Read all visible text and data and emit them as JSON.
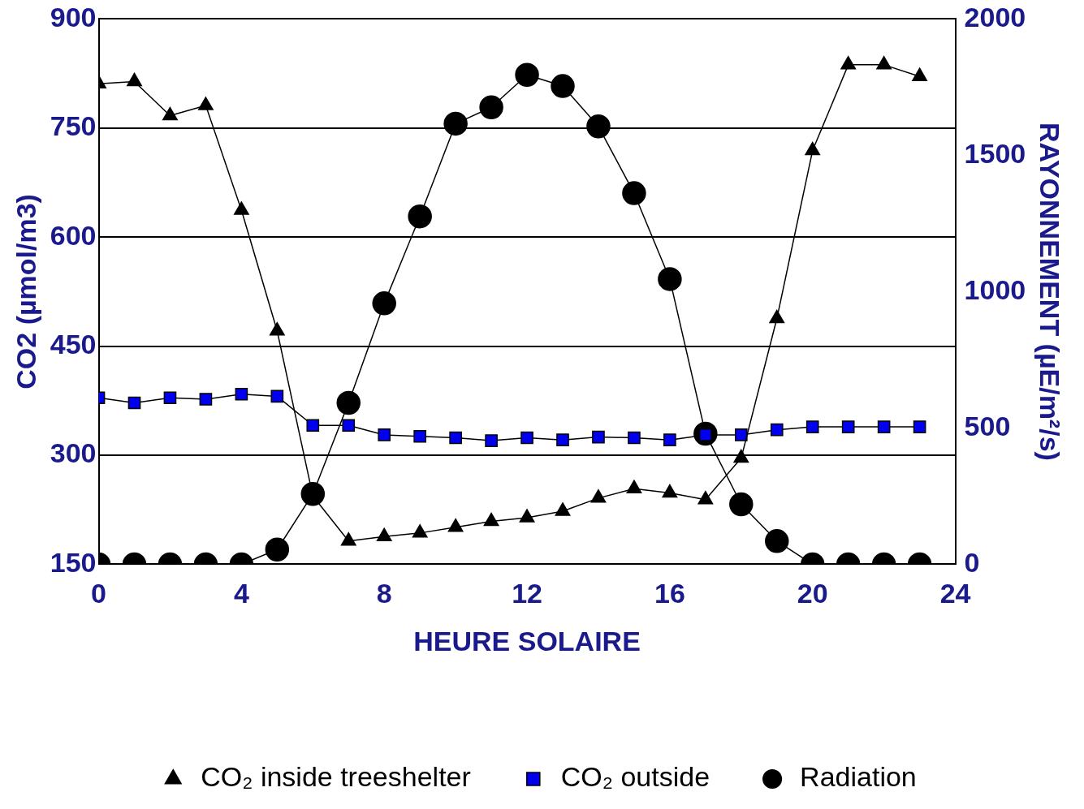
{
  "chart_data": {
    "type": "line",
    "xlabel": "HEURE SOLAIRE",
    "ylabel": "CO2 (µmol/m3)",
    "y2label": "RAYONNEMENT (µE/m²/s)",
    "x": [
      0,
      1,
      2,
      3,
      4,
      5,
      6,
      7,
      8,
      9,
      10,
      11,
      12,
      13,
      14,
      15,
      16,
      17,
      18,
      19,
      20,
      21,
      22,
      23
    ],
    "xlim": [
      0,
      24
    ],
    "xticks": [
      0,
      4,
      8,
      12,
      16,
      20,
      24
    ],
    "ylim": [
      150,
      900
    ],
    "yticks": [
      150,
      300,
      450,
      600,
      750,
      900
    ],
    "y2lim": [
      0,
      2000
    ],
    "y2ticks": [
      0,
      500,
      1000,
      1500,
      2000
    ],
    "grid": "y",
    "legend": "bottom",
    "line_style": "solid",
    "series": [
      {
        "name": "CO₂ inside treeshelter",
        "color": "#000000",
        "marker": "triangle",
        "values": [
          811,
          814,
          767,
          781,
          637,
          471,
          244,
          182,
          188,
          193,
          201,
          209,
          214,
          223,
          241,
          254,
          248,
          239,
          296,
          488,
          719,
          837,
          837,
          821
        ]
      },
      {
        "name": "CO₂ outside",
        "color": "#0000ee",
        "marker": "square",
        "values": [
          379,
          372,
          379,
          377,
          384,
          381,
          341,
          341,
          328,
          326,
          324,
          320,
          324,
          321,
          325,
          324,
          321,
          328,
          328,
          335,
          339,
          339,
          339,
          339
        ]
      },
      {
        "name": "Radiation",
        "color": "#000000",
        "marker": "circle",
        "axis": "y2",
        "values": [
          0,
          0,
          0,
          0,
          0,
          54,
          258,
          592,
          957,
          1276,
          1616,
          1676,
          1795,
          1754,
          1606,
          1361,
          1046,
          479,
          220,
          85,
          0,
          0,
          0,
          0
        ]
      }
    ]
  }
}
